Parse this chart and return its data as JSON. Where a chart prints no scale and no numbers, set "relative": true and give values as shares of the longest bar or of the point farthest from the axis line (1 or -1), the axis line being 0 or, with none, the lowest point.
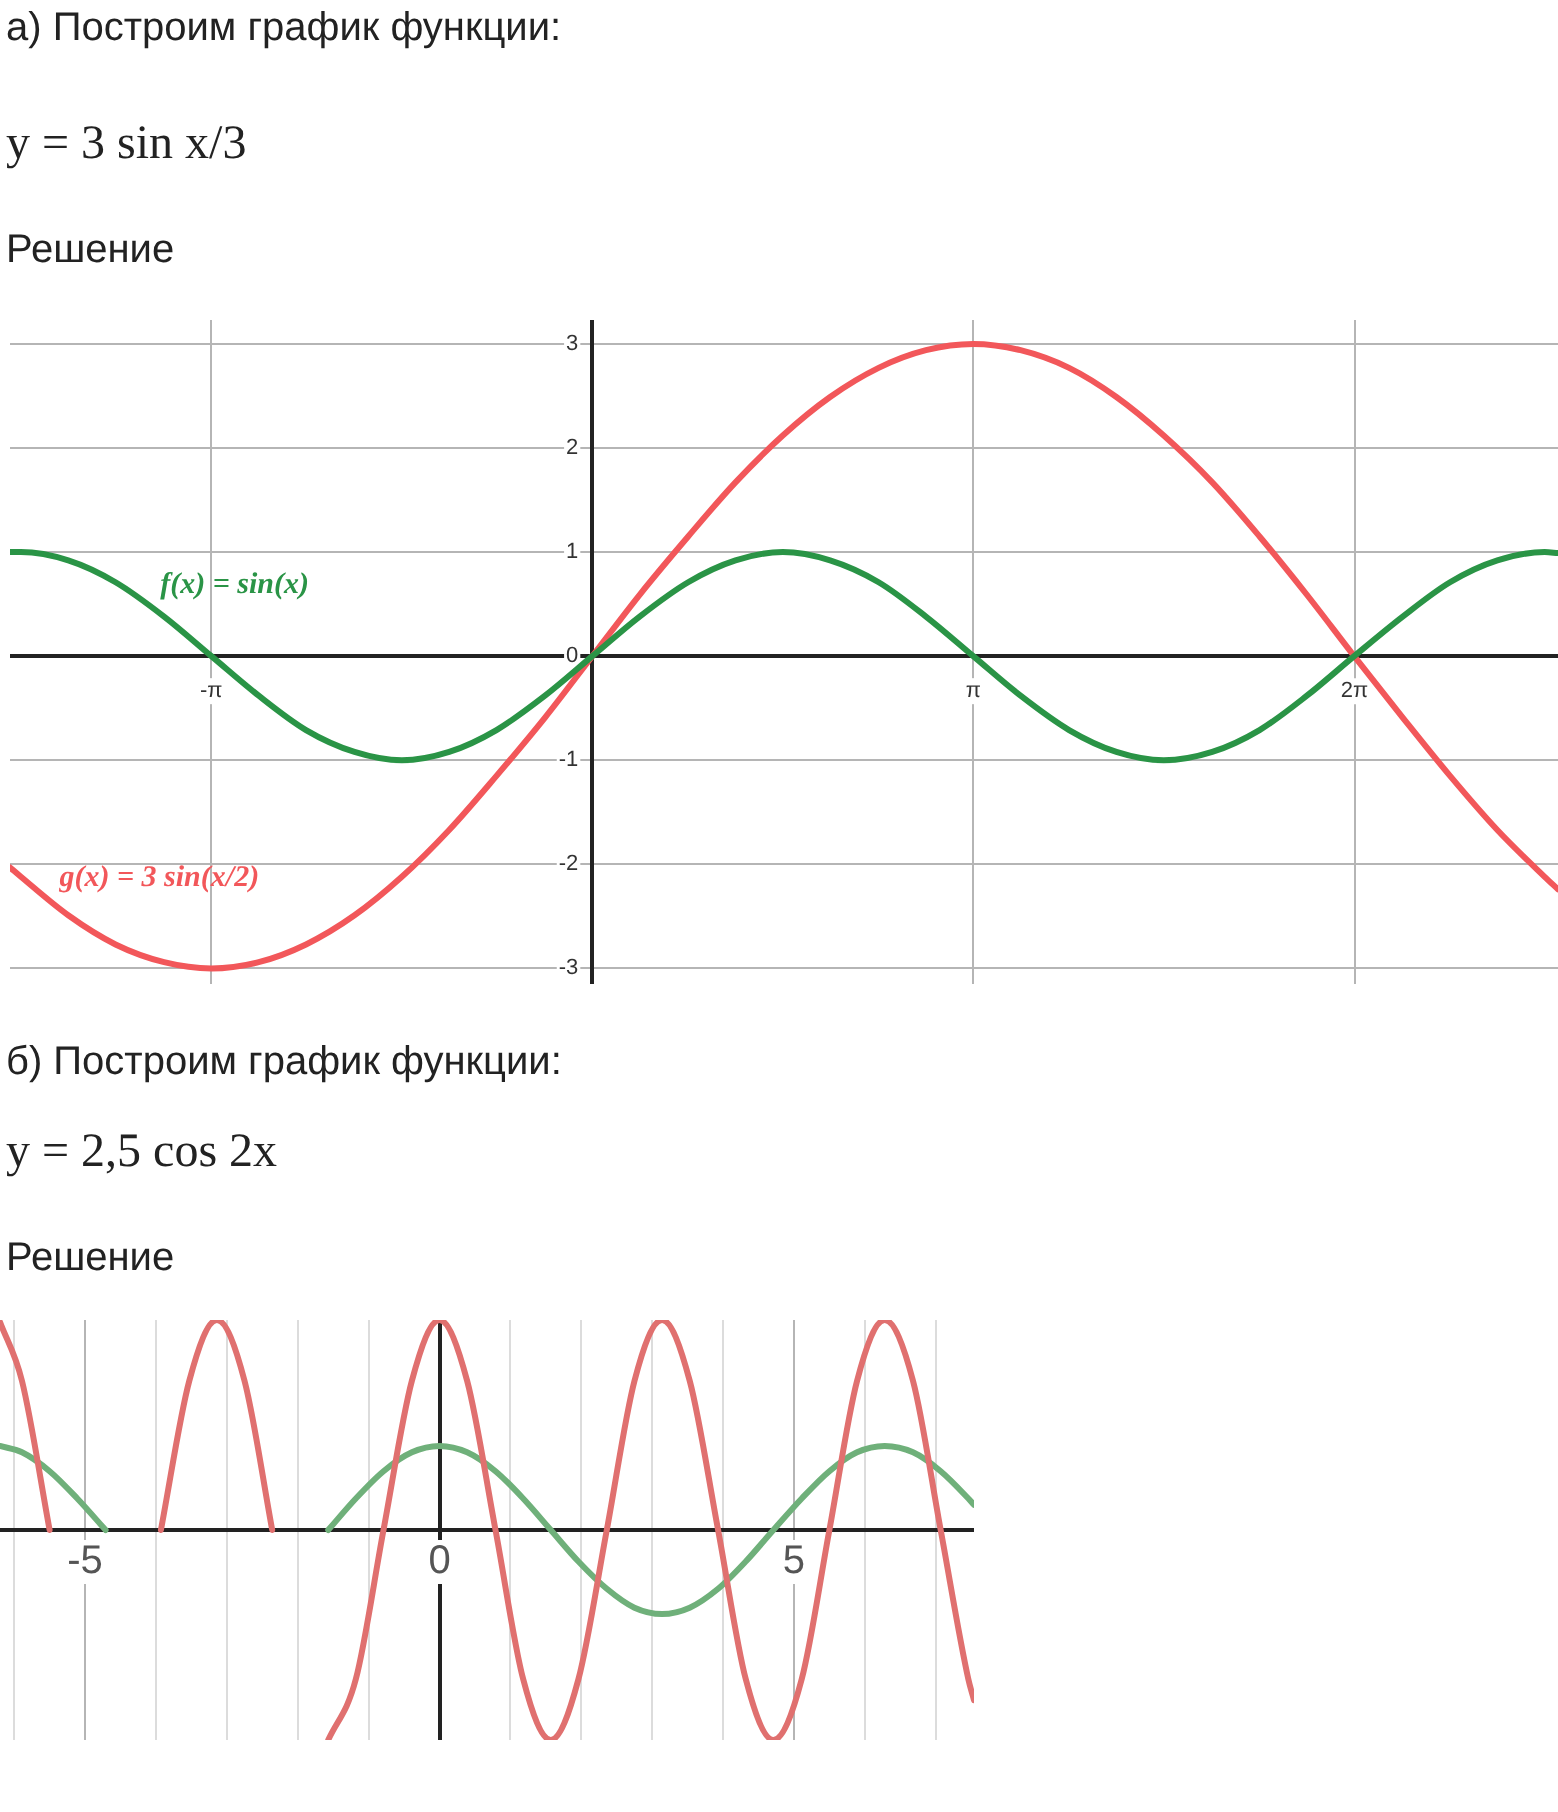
{
  "chart_data": [
    {
      "type": "line",
      "title": "а) Построим график функции:",
      "subtitle": "y = 3 sin x/3",
      "annotations": [
        "Решение"
      ],
      "x": [
        -4.8,
        -4.71,
        -4.32,
        -3.93,
        -3.53,
        -3.14,
        -2.75,
        -2.36,
        -1.96,
        -1.57,
        -1.18,
        -0.79,
        -0.39,
        0,
        0.39,
        0.79,
        1.18,
        1.57,
        1.96,
        2.36,
        2.75,
        3.14,
        3.53,
        3.93,
        4.32,
        4.71,
        5.11,
        5.5,
        5.89,
        6.28,
        6.68,
        7.07,
        7.46,
        7.85,
        7.96
      ],
      "series": [
        {
          "name": "f(x) = sin(x)",
          "color": "#2a9446",
          "values": [
            1,
            1,
            0.92,
            0.71,
            0.38,
            0,
            -0.38,
            -0.71,
            -0.92,
            -1,
            -0.92,
            -0.71,
            -0.38,
            0,
            0.38,
            0.71,
            0.92,
            1,
            0.92,
            0.71,
            0.38,
            0,
            -0.38,
            -0.71,
            -0.92,
            -1,
            -0.92,
            -0.71,
            -0.38,
            0,
            0.38,
            0.71,
            0.92,
            1,
            0.99
          ]
        },
        {
          "name": "g(x) = 3 sin(x/2)",
          "color": "#f2575a",
          "values": [
            -2.03,
            -2.12,
            -2.49,
            -2.77,
            -2.94,
            -3,
            -2.94,
            -2.77,
            -2.49,
            -2.12,
            -1.67,
            -1.15,
            -0.59,
            0,
            0.59,
            1.15,
            1.67,
            2.12,
            2.49,
            2.77,
            2.94,
            3,
            2.94,
            2.77,
            2.49,
            2.12,
            1.67,
            1.15,
            0.59,
            0,
            -0.59,
            -1.15,
            -1.67,
            -2.12,
            -2.24
          ]
        }
      ],
      "xlim": [
        -4.8,
        7.96
      ],
      "ylim": [
        -3.15,
        3.23
      ],
      "xticks": [
        {
          "value": -3.1416,
          "label": "-π"
        },
        {
          "value": 0,
          "label": null
        },
        {
          "value": 3.1416,
          "label": "π"
        },
        {
          "value": 6.2832,
          "label": "2π"
        }
      ],
      "yticks": [
        -3,
        -2,
        -1,
        0,
        1,
        2,
        3
      ],
      "grid": true
    },
    {
      "type": "line",
      "title": "б) Построим график функции:",
      "subtitle": "y = 2,5 cos 2x",
      "annotations": [
        "Решение"
      ],
      "relative": true,
      "x": [
        -6.2,
        -5.89,
        -5.5,
        -5.11,
        -4.71,
        -4.32,
        -3.93,
        -3.53,
        -3.14,
        -2.75,
        -2.36,
        -1.96,
        -1.57,
        -1.18,
        -0.79,
        -0.39,
        0,
        0.39,
        0.79,
        1.18,
        1.57,
        1.96,
        2.36,
        2.75,
        3.14,
        3.53,
        3.93,
        4.32,
        4.71,
        5.11,
        5.5,
        5.89,
        6.28,
        6.68,
        7.07,
        7.46,
        7.54
      ],
      "series": [
        {
          "color": "#e0706f",
          "values": [
            0.99,
            0.71,
            0,
            null,
            null,
            null,
            0,
            0.71,
            1,
            0.71,
            0,
            null,
            -1,
            -0.71,
            0,
            0.71,
            1,
            0.71,
            0,
            -0.71,
            -1,
            -0.71,
            0,
            0.71,
            1,
            0.71,
            0,
            -0.71,
            -1,
            -0.71,
            0,
            0.71,
            1,
            0.71,
            0,
            -0.71,
            -0.81
          ]
        },
        {
          "color": "#6fb07a",
          "values": [
            0.4,
            0.37,
            0.28,
            0.15,
            0,
            null,
            null,
            null,
            null,
            null,
            null,
            null,
            0,
            0.15,
            0.28,
            0.37,
            0.4,
            0.37,
            0.28,
            0.15,
            0,
            -0.15,
            -0.28,
            -0.37,
            -0.4,
            -0.37,
            -0.28,
            -0.15,
            0,
            0.15,
            0.28,
            0.37,
            0.4,
            0.37,
            0.28,
            0.15,
            0.12
          ]
        }
      ],
      "xlim": [
        -6.2,
        7.54
      ],
      "xticks": [
        {
          "value": -6,
          "label": null
        },
        -5,
        {
          "value": -4,
          "label": null
        },
        {
          "value": -3,
          "label": null
        },
        {
          "value": -2,
          "label": null
        },
        {
          "value": -1,
          "label": null
        },
        0,
        {
          "value": 1,
          "label": null
        },
        {
          "value": 2,
          "label": null
        },
        {
          "value": 3,
          "label": null
        },
        {
          "value": 4,
          "label": null
        },
        5,
        {
          "value": 6,
          "label": null
        },
        {
          "value": 7,
          "label": null
        }
      ],
      "grid": "x"
    }
  ]
}
